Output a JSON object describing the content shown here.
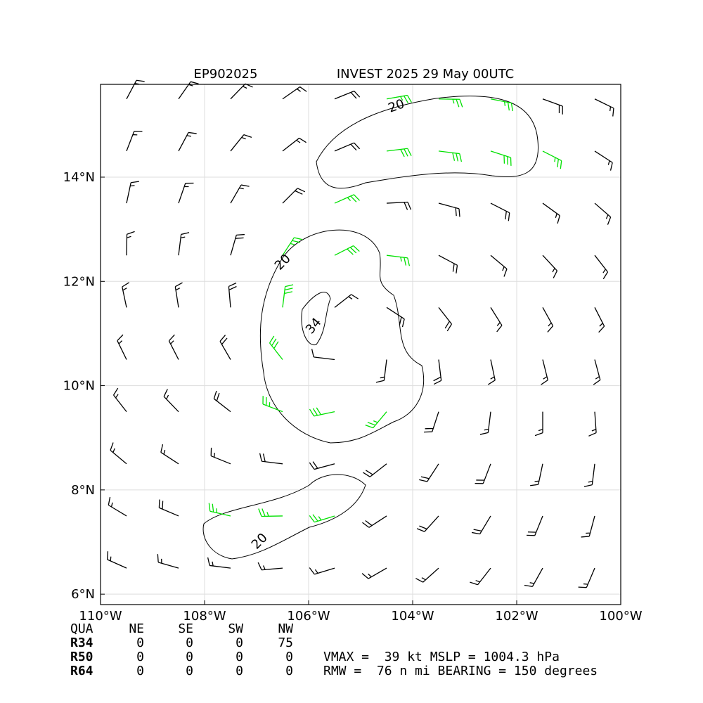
{
  "chart_data": {
    "type": "barbs",
    "title_left": "EP902025",
    "title": "INVEST 2025 29 May 00UTC",
    "xlim": [
      -110,
      -100
    ],
    "ylim": [
      5.8,
      15.78
    ],
    "xticks": [
      {
        "value": -110,
        "label": "110°W"
      },
      {
        "value": -108,
        "label": "108°W"
      },
      {
        "value": -106,
        "label": "106°W"
      },
      {
        "value": -104,
        "label": "104°W"
      },
      {
        "value": -102,
        "label": "102°W"
      },
      {
        "value": -100,
        "label": "100°W"
      }
    ],
    "yticks": [
      {
        "value": 6,
        "label": "6°N"
      },
      {
        "value": 8,
        "label": "8°N"
      },
      {
        "value": 10,
        "label": "10°N"
      },
      {
        "value": 12,
        "label": "12°N"
      },
      {
        "value": 14,
        "label": "14°N"
      }
    ],
    "grid": true,
    "contour_labels": [
      {
        "value": 20,
        "label": "20"
      },
      {
        "value": 20,
        "label": "20"
      },
      {
        "value": 20,
        "label": "20"
      },
      {
        "value": 34,
        "label": "34"
      }
    ],
    "colors": [
      "#000000",
      "#00e000",
      "#f0a000"
    ],
    "barbs": {
      "lon": [
        -109.5,
        -108.5,
        -107.5,
        -106.5,
        -105.5,
        -104.5,
        -103.5,
        -102.5,
        -101.5,
        -100.5
      ],
      "lat": [
        15.5,
        14.5,
        13.5,
        12.5,
        11.5,
        10.5,
        9.5,
        8.5,
        7.5,
        6.5
      ],
      "speed": [
        [
          15,
          15,
          15,
          15,
          20,
          25,
          25,
          25,
          20,
          15
        ],
        [
          15,
          15,
          15,
          15,
          20,
          30,
          30,
          30,
          25,
          15
        ],
        [
          15,
          15,
          15,
          20,
          25,
          20,
          20,
          20,
          15,
          15
        ],
        [
          15,
          15,
          20,
          25,
          30,
          25,
          20,
          15,
          15,
          15
        ],
        [
          15,
          15,
          20,
          30,
          15,
          20,
          20,
          15,
          15,
          15
        ],
        [
          15,
          15,
          20,
          30,
          10,
          15,
          20,
          15,
          15,
          15
        ],
        [
          15,
          15,
          20,
          25,
          30,
          25,
          20,
          15,
          15,
          15
        ],
        [
          15,
          15,
          15,
          20,
          20,
          20,
          20,
          20,
          15,
          15
        ],
        [
          15,
          20,
          25,
          25,
          25,
          20,
          20,
          20,
          20,
          15
        ],
        [
          15,
          15,
          15,
          15,
          15,
          15,
          15,
          15,
          15,
          15
        ]
      ],
      "dir": [
        [
          28,
          35,
          44,
          55,
          68,
          80,
          91,
          101,
          110,
          116
        ],
        [
          21,
          28,
          39,
          52,
          67,
          83,
          97,
          108,
          117,
          123
        ],
        [
          12,
          19,
          30,
          45,
          66,
          87,
          105,
          117,
          126,
          131
        ],
        [
          1,
          7,
          16,
          33,
          63,
          97,
          118,
          130,
          137,
          142
        ],
        [
          348,
          351,
          355,
          7,
          52,
          123,
          142,
          148,
          151,
          153
        ],
        [
          334,
          333,
          330,
          322,
          277,
          187,
          173,
          168,
          166,
          165
        ],
        [
          322,
          316,
          308,
          291,
          258,
          220,
          198,
          187,
          180,
          176
        ],
        [
          310,
          303,
          292,
          277,
          255,
          232,
          213,
          201,
          192,
          187
        ],
        [
          301,
          293,
          283,
          269,
          253,
          237,
          222,
          211,
          202,
          195
        ],
        [
          294,
          286,
          277,
          265,
          253,
          240,
          228,
          218,
          209,
          203
        ]
      ]
    }
  },
  "radii_table": {
    "header": [
      "QUA",
      "NE",
      "SE",
      "SW",
      "NW"
    ],
    "rows": [
      [
        "R34",
        "0",
        "0",
        "0",
        "75"
      ],
      [
        "R50",
        "0",
        "0",
        "0",
        "0"
      ],
      [
        "R64",
        "0",
        "0",
        "0",
        "0"
      ]
    ]
  },
  "summary": [
    "VMAX =  39 kt MSLP = 1004.3 hPa",
    "RMW =  76 n mi BEARING = 150 degrees"
  ]
}
